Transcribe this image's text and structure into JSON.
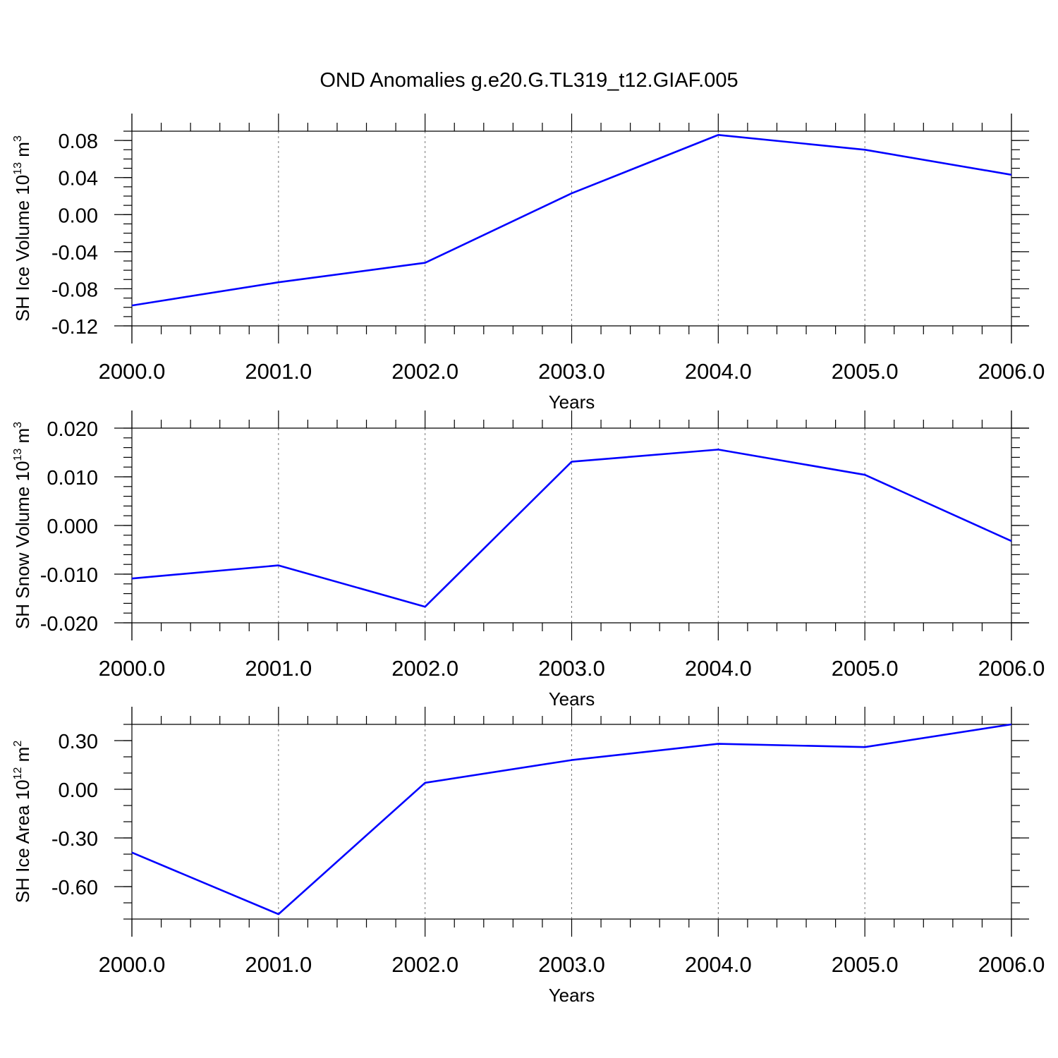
{
  "title": "OND Anomalies g.e20.G.TL319_t12.GIAF.005",
  "colors": {
    "series": "#0000ff",
    "axis": "#000000",
    "grid": "#777777"
  },
  "chart_data": [
    {
      "type": "line",
      "title": "",
      "ylabel": "SH Ice Volume 10",
      "ylabel_exp": "13",
      "ylabel_unit": " m",
      "ylabel_unit_exp": "3",
      "xlabel": "Years",
      "x": [
        2000,
        2001,
        2002,
        2003,
        2004,
        2005,
        2006
      ],
      "x_tick_labels": [
        "2000.0",
        "2001.0",
        "2002.0",
        "2003.0",
        "2004.0",
        "2005.0",
        "2006.0"
      ],
      "y_tick_values": [
        0.08,
        0.04,
        0.0,
        -0.04,
        -0.08,
        -0.12
      ],
      "y_tick_labels": [
        "0.08",
        "0.04",
        "0.00",
        "-0.04",
        "-0.08",
        "-0.12"
      ],
      "xlim": [
        2000,
        2006
      ],
      "ylim": [
        -0.12,
        0.09
      ],
      "y_minor_step": 0.01,
      "grid": "vertical dashed at major x ticks",
      "series": [
        {
          "values": [
            -0.098,
            -0.073,
            -0.052,
            0.023,
            0.086,
            0.07,
            0.043
          ]
        }
      ]
    },
    {
      "type": "line",
      "title": "",
      "ylabel": "SH Snow Volume 10",
      "ylabel_exp": "13",
      "ylabel_unit": " m",
      "ylabel_unit_exp": "3",
      "xlabel": "Years",
      "x": [
        2000,
        2001,
        2002,
        2003,
        2004,
        2005,
        2006
      ],
      "x_tick_labels": [
        "2000.0",
        "2001.0",
        "2002.0",
        "2003.0",
        "2004.0",
        "2005.0",
        "2006.0"
      ],
      "y_tick_values": [
        0.02,
        0.01,
        0.0,
        -0.01,
        -0.02
      ],
      "y_tick_labels": [
        "0.020",
        "0.010",
        "0.000",
        "-0.010",
        "-0.020"
      ],
      "xlim": [
        2000,
        2006
      ],
      "ylim": [
        -0.02,
        0.02
      ],
      "y_minor_step": 0.002,
      "grid": "vertical dashed at major x ticks",
      "series": [
        {
          "values": [
            -0.0109,
            -0.0082,
            -0.0167,
            0.0131,
            0.0156,
            0.0104,
            -0.0032
          ]
        }
      ]
    },
    {
      "type": "line",
      "title": "",
      "ylabel": "SH Ice Area 10",
      "ylabel_exp": "12",
      "ylabel_unit": " m",
      "ylabel_unit_exp": "2",
      "xlabel": "Years",
      "x": [
        2000,
        2001,
        2002,
        2003,
        2004,
        2005,
        2006
      ],
      "x_tick_labels": [
        "2000.0",
        "2001.0",
        "2002.0",
        "2003.0",
        "2004.0",
        "2005.0",
        "2006.0"
      ],
      "y_tick_values": [
        0.3,
        0.0,
        -0.3,
        -0.6
      ],
      "y_tick_labels": [
        "0.30",
        "0.00",
        "-0.30",
        "-0.60"
      ],
      "xlim": [
        2000,
        2006
      ],
      "ylim": [
        -0.8,
        0.4
      ],
      "y_minor_step": 0.1,
      "grid": "vertical dashed at major x ticks",
      "series": [
        {
          "values": [
            -0.39,
            -0.77,
            0.04,
            0.18,
            0.28,
            0.26,
            0.4
          ]
        }
      ]
    }
  ]
}
